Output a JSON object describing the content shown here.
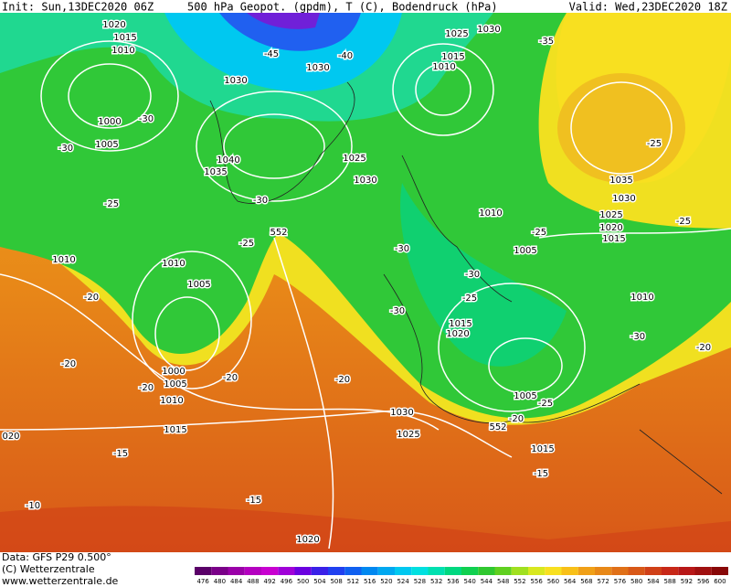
{
  "header": {
    "init": "Init: Sun,13DEC2020 06Z",
    "title": "500 hPa Geopot. (gpdm), T (C), Bodendruck (hPa)",
    "valid": "Valid: Wed,23DEC2020 18Z"
  },
  "footer": {
    "lines": [
      "Data: GFS P29 0.500°",
      "(C) Wetterzentrale",
      "www.wetterzentrale.de"
    ]
  },
  "colorbar": {
    "levels": [
      476,
      480,
      484,
      488,
      492,
      496,
      500,
      504,
      508,
      512,
      516,
      520,
      524,
      528,
      532,
      536,
      540,
      544,
      548,
      552,
      556,
      560,
      564,
      568,
      572,
      576,
      580,
      584,
      588,
      592,
      596,
      600
    ],
    "colors": [
      "#5a0068",
      "#7a0088",
      "#9a00a8",
      "#b400c0",
      "#c800d0",
      "#a000d8",
      "#6a00e0",
      "#3a20e8",
      "#2040f0",
      "#1060f0",
      "#0088f0",
      "#00a8f0",
      "#00c8f0",
      "#00e0e0",
      "#00e0b0",
      "#00d880",
      "#10d050",
      "#30c830",
      "#60d020",
      "#a0e020",
      "#d8e820",
      "#f8e020",
      "#f8c018",
      "#f0a018",
      "#e88818",
      "#e07018",
      "#d85818",
      "#d04018",
      "#c82818",
      "#b81818",
      "#a01010",
      "#880808"
    ]
  },
  "map": {
    "labels": [
      "1020",
      "1015",
      "1010",
      "1000",
      "1005",
      "-30",
      "-30",
      "-25",
      "1010",
      "-20",
      "1010",
      "1005",
      "-25",
      "552",
      "-30",
      "1040",
      "1035",
      "1030",
      "-45",
      "-40",
      "1030",
      "1025",
      "1030",
      "-35",
      "1015",
      "1010",
      "1025",
      "1030",
      "-30",
      "1010",
      "-25",
      "1005",
      "-30",
      "-25",
      "-30",
      "1015",
      "1020",
      "1035",
      "1030",
      "1025",
      "1020",
      "1015",
      "-25",
      "-25",
      "1010",
      "-30",
      "-20",
      "1000",
      "1005",
      "1010",
      "-20",
      "-20",
      "-20",
      "-20",
      "1030",
      "1025",
      "1015",
      "1005",
      "-25",
      "-20",
      "552",
      "1015",
      "-15",
      "-15",
      "-15",
      "-10",
      "020",
      "1020"
    ]
  }
}
